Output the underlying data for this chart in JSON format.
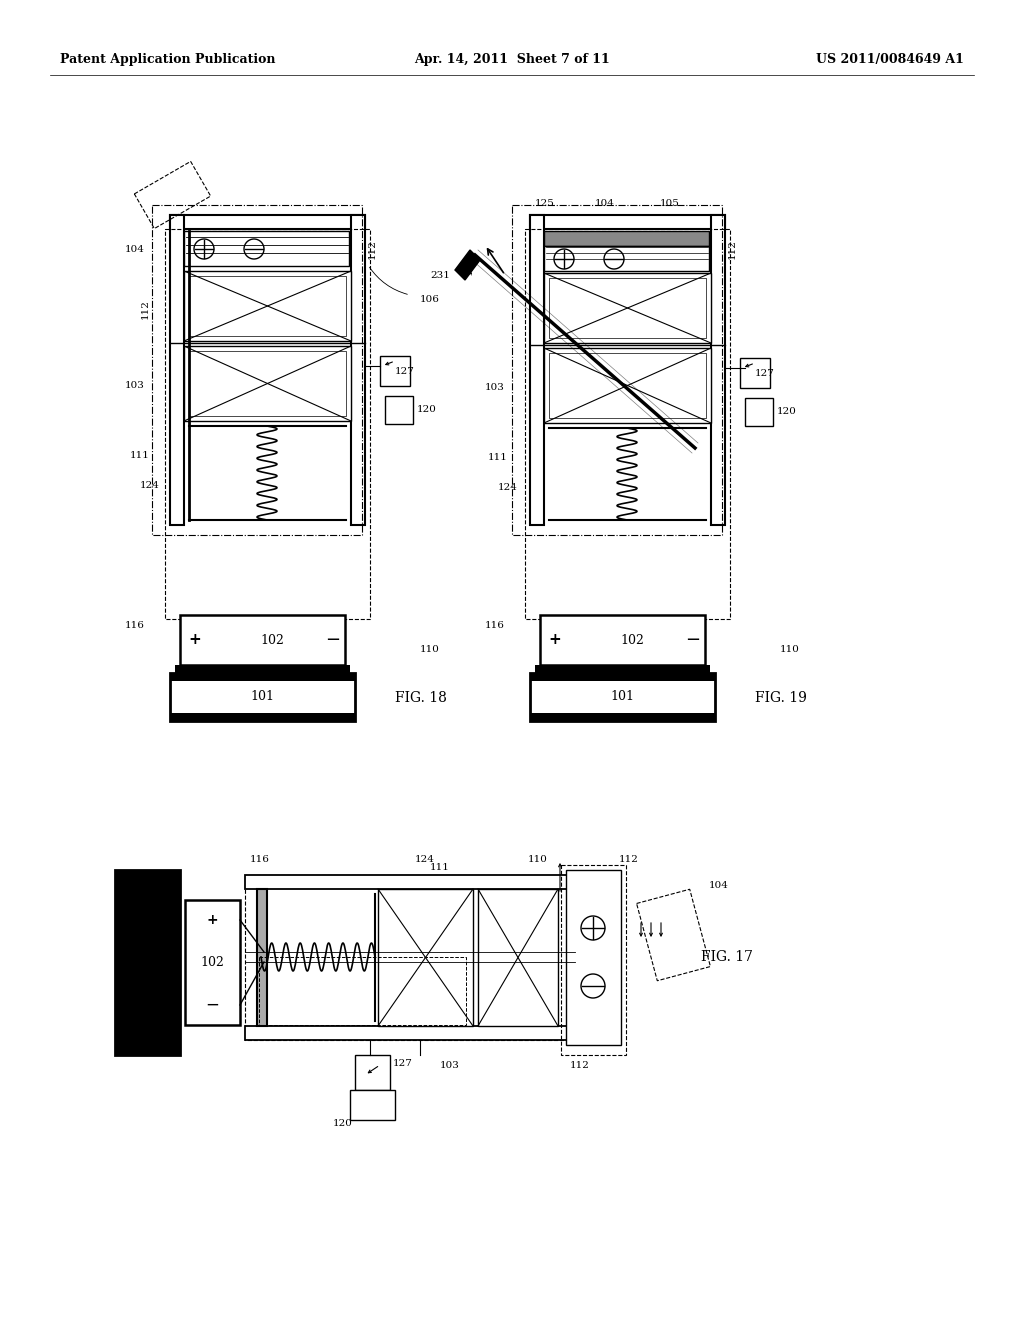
{
  "bg_color": "#ffffff",
  "header_left": "Patent Application Publication",
  "header_mid": "Apr. 14, 2011  Sheet 7 of 11",
  "header_right": "US 2011/0084649 A1",
  "fig18_label": "FIG. 18",
  "fig19_label": "FIG. 19",
  "fig17_label": "FIG. 17"
}
